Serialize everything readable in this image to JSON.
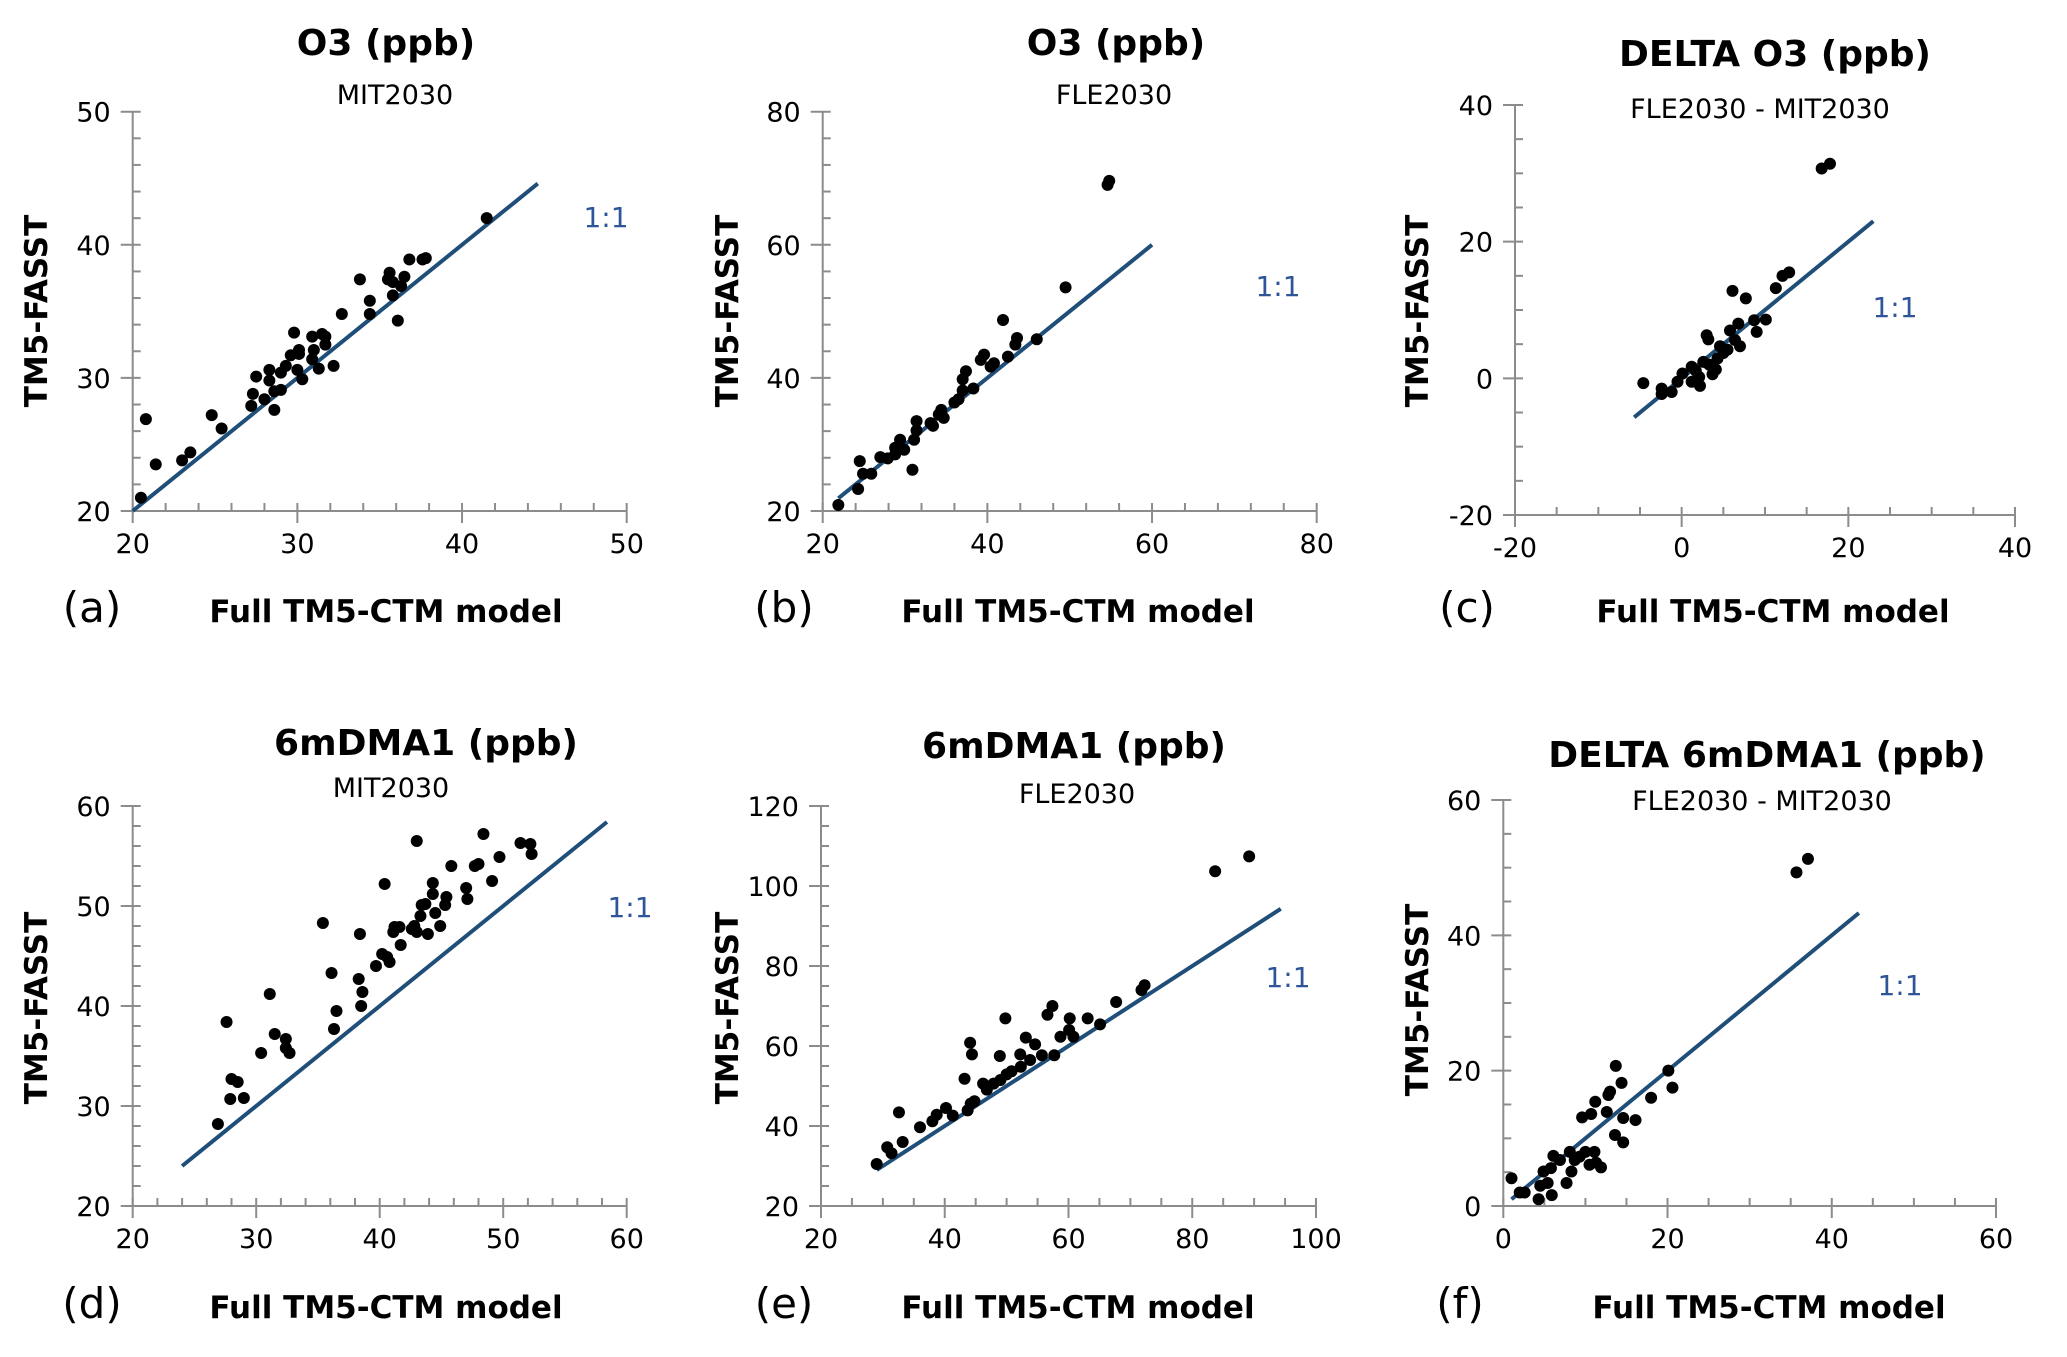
{
  "colors": {
    "points": "#000000",
    "reference_line": "#1f4e79",
    "reference_label": "#2e5597",
    "axis": "#8c8c8c"
  },
  "chart_data": [
    {
      "panel": "(a)",
      "type": "scatter",
      "title": "O3 (ppb)",
      "subtitle": "MIT2030",
      "xlabel": "Full TM5-CTM model",
      "ylabel": "TM5-FASST",
      "xlim": [
        20,
        50
      ],
      "ylim": [
        20,
        50
      ],
      "xticks": [
        20,
        30,
        40,
        50
      ],
      "yticks": [
        20,
        30,
        40,
        50
      ],
      "grid": false,
      "reference_line": {
        "label": "1:1",
        "x_range": [
          20,
          44.6
        ]
      },
      "x": [
        20.5,
        20.8,
        21.4,
        23.0,
        23.5,
        24.8,
        25.4,
        27.2,
        27.3,
        27.5,
        28.0,
        28.3,
        28.3,
        28.6,
        28.6,
        29.0,
        29.0,
        29.3,
        29.6,
        29.8,
        30.0,
        30.1,
        30.1,
        30.3,
        30.9,
        30.9,
        31.0,
        31.3,
        31.5,
        31.7,
        31.7,
        32.2,
        32.7,
        33.8,
        34.4,
        34.4,
        35.6,
        35.5,
        35.8,
        35.8,
        36.1,
        36.3,
        36.5,
        36.8,
        37.6,
        37.8,
        41.5
      ],
      "y": [
        21.0,
        26.9,
        23.5,
        23.8,
        24.4,
        27.2,
        26.2,
        27.9,
        28.8,
        30.1,
        28.4,
        30.6,
        29.8,
        27.6,
        29.0,
        29.1,
        30.4,
        30.9,
        31.7,
        33.4,
        30.6,
        32.1,
        31.8,
        29.9,
        33.1,
        31.4,
        32.1,
        30.7,
        33.3,
        33.1,
        32.5,
        30.9,
        34.8,
        37.4,
        35.8,
        34.8,
        37.9,
        37.4,
        37.2,
        36.2,
        34.3,
        36.9,
        37.6,
        38.9,
        38.9,
        39.0,
        42.0
      ]
    },
    {
      "panel": "(b)",
      "type": "scatter",
      "title": "O3 (ppb)",
      "subtitle": "FLE2030",
      "xlabel": "Full TM5-CTM model",
      "ylabel": "TM5-FASST",
      "xlim": [
        20,
        80
      ],
      "ylim": [
        20,
        80
      ],
      "xticks": [
        20,
        40,
        60,
        80
      ],
      "yticks": [
        20,
        40,
        60,
        80
      ],
      "grid": false,
      "reference_line": {
        "label": "1:1",
        "x_range": [
          21.9,
          60
        ]
      },
      "x": [
        21.9,
        24.3,
        24.5,
        24.9,
        25.9,
        27.0,
        27.9,
        28.8,
        28.8,
        29.4,
        29.9,
        30.9,
        31.1,
        31.4,
        31.4,
        33.1,
        33.4,
        34.1,
        34.4,
        34.7,
        36.0,
        36.5,
        37.0,
        37.0,
        37.4,
        38.3,
        39.2,
        39.6,
        40.4,
        40.8,
        41.9,
        42.5,
        43.4,
        43.6,
        46.0,
        49.5,
        54.6,
        54.8
      ],
      "y": [
        20.9,
        23.3,
        27.5,
        25.6,
        25.6,
        28.1,
        27.9,
        28.5,
        29.5,
        30.7,
        29.2,
        26.2,
        30.7,
        32.1,
        33.5,
        33.2,
        32.8,
        34.5,
        35.2,
        34.0,
        36.3,
        36.8,
        38.1,
        39.8,
        41.0,
        38.4,
        42.7,
        43.5,
        41.7,
        42.2,
        48.7,
        43.2,
        45.0,
        46.0,
        45.8,
        53.6,
        69.0,
        69.6
      ]
    },
    {
      "panel": "(c)",
      "type": "scatter",
      "title": "DELTA O3 (ppb)",
      "subtitle": "FLE2030 - MIT2030",
      "xlabel": "Full TM5-CTM model",
      "ylabel": "TM5-FASST",
      "xlim": [
        -20,
        40
      ],
      "ylim": [
        -20,
        40
      ],
      "xticks": [
        -20,
        0,
        20,
        40
      ],
      "yticks": [
        -20,
        0,
        20,
        40
      ],
      "grid": false,
      "reference_line": {
        "label": "1:1",
        "x_range": [
          -5.7,
          23
        ]
      },
      "x": [
        -4.6,
        -2.4,
        -2.4,
        -1.2,
        -0.5,
        0.1,
        1.2,
        1.2,
        1.7,
        2.1,
        2.2,
        2.6,
        3.0,
        3.2,
        3.3,
        3.7,
        4.1,
        4.3,
        4.6,
        5.0,
        5.5,
        5.8,
        6.1,
        6.4,
        6.8,
        7.0,
        7.7,
        8.7,
        9.0,
        10.1,
        11.3,
        12.1,
        12.9,
        16.8,
        17.8
      ],
      "y": [
        -0.7,
        -1.5,
        -2.3,
        -2.0,
        -0.5,
        0.7,
        1.7,
        -0.5,
        1.1,
        0.2,
        -1.1,
        2.4,
        6.3,
        5.7,
        2.0,
        0.6,
        1.3,
        2.9,
        4.7,
        3.7,
        4.2,
        7.0,
        12.8,
        5.6,
        8.0,
        4.7,
        11.7,
        8.5,
        6.8,
        8.6,
        13.2,
        15.0,
        15.5,
        30.7,
        31.4
      ]
    },
    {
      "panel": "(d)",
      "type": "scatter",
      "title": "6mDMA1 (ppb)",
      "subtitle": "MIT2030",
      "xlabel": "Full TM5-CTM model",
      "ylabel": "TM5-FASST",
      "xlim": [
        20,
        60
      ],
      "ylim": [
        20,
        60
      ],
      "xticks": [
        20,
        30,
        40,
        50,
        60
      ],
      "yticks": [
        20,
        30,
        40,
        50,
        60
      ],
      "grid": false,
      "reference_line": {
        "label": "1:1",
        "x_range": [
          24.0,
          58.4
        ]
      },
      "x": [
        26.9,
        27.6,
        27.9,
        28.0,
        28.5,
        29.0,
        30.4,
        31.1,
        31.5,
        32.4,
        32.4,
        32.7,
        35.4,
        36.1,
        36.3,
        36.5,
        38.3,
        38.4,
        38.6,
        38.5,
        39.7,
        40.2,
        40.4,
        40.6,
        40.8,
        41.1,
        41.2,
        41.6,
        41.7,
        42.6,
        42.8,
        43.0,
        43.0,
        43.3,
        43.4,
        43.7,
        43.9,
        44.3,
        44.3,
        44.5,
        44.9,
        45.3,
        45.4,
        45.8,
        47.0,
        47.1,
        47.7,
        48.0,
        48.4,
        49.1,
        49.7,
        51.4,
        52.2,
        52.3
      ],
      "y": [
        28.2,
        38.4,
        30.7,
        32.7,
        32.4,
        30.8,
        35.3,
        41.2,
        37.2,
        36.7,
        35.8,
        35.3,
        48.3,
        43.3,
        37.7,
        39.5,
        42.7,
        47.2,
        41.4,
        40.0,
        44.0,
        45.2,
        52.2,
        44.9,
        44.4,
        47.4,
        47.9,
        47.9,
        46.1,
        47.7,
        48.0,
        47.4,
        56.5,
        49.0,
        50.1,
        50.2,
        47.2,
        51.2,
        52.3,
        49.3,
        48.0,
        50.1,
        50.9,
        54.0,
        51.8,
        50.7,
        54.0,
        54.2,
        57.2,
        52.5,
        54.9,
        56.3,
        56.2,
        55.2
      ]
    },
    {
      "panel": "(e)",
      "type": "scatter",
      "title": "6mDMA1 (ppb)",
      "subtitle": "FLE2030",
      "xlabel": "Full TM5-CTM model",
      "ylabel": "TM5-FASST",
      "xlim": [
        20,
        100
      ],
      "ylim": [
        20,
        120
      ],
      "xticks": [
        20,
        40,
        60,
        80,
        100
      ],
      "yticks": [
        20,
        40,
        60,
        80,
        100,
        120
      ],
      "grid": false,
      "reference_line": {
        "label": "1:1",
        "x_range": [
          29.0,
          94.3
        ]
      },
      "x": [
        29.0,
        30.7,
        31.4,
        32.6,
        33.2,
        36.0,
        38.0,
        38.7,
        40.2,
        41.3,
        43.2,
        43.7,
        44.1,
        44.4,
        44.2,
        44.8,
        46.2,
        46.8,
        47.9,
        48.9,
        49.0,
        49.8,
        50.0,
        50.8,
        52.2,
        52.3,
        53.1,
        53.8,
        54.6,
        55.7,
        56.6,
        57.4,
        57.7,
        58.7,
        60.2,
        60.1,
        60.8,
        63.1,
        65.1,
        67.7,
        71.8,
        72.3,
        83.7,
        89.2
      ],
      "y": [
        30.5,
        34.7,
        33.2,
        43.4,
        36.0,
        39.7,
        41.2,
        42.8,
        44.5,
        42.6,
        51.8,
        43.9,
        60.8,
        57.9,
        45.6,
        46.2,
        50.6,
        49.1,
        50.6,
        57.5,
        51.5,
        66.9,
        52.9,
        53.7,
        57.9,
        54.8,
        62.1,
        56.5,
        60.4,
        57.7,
        67.8,
        70.0,
        57.7,
        62.3,
        66.9,
        64.0,
        62.3,
        66.9,
        65.4,
        71.0,
        74.0,
        75.2,
        103.7,
        107.4
      ]
    },
    {
      "panel": "(f)",
      "type": "scatter",
      "title": "DELTA 6mDMA1 (ppb)",
      "subtitle": "FLE2030 - MIT2030",
      "xlabel": "Full TM5-CTM model",
      "ylabel": "TM5-FASST",
      "xlim": [
        0,
        60
      ],
      "ylim": [
        0,
        60
      ],
      "xticks": [
        0,
        20,
        40,
        60
      ],
      "yticks": [
        0,
        20,
        40,
        60
      ],
      "grid": false,
      "reference_line": {
        "label": "1:1",
        "x_range": [
          1.0,
          43.3
        ]
      },
      "x": [
        1.0,
        2.0,
        2.6,
        4.3,
        4.5,
        4.9,
        5.4,
        5.9,
        6.1,
        5.8,
        6.9,
        7.7,
        8.1,
        8.3,
        8.7,
        9.3,
        9.6,
        10.0,
        10.5,
        10.7,
        11.1,
        11.2,
        11.3,
        11.9,
        12.6,
        12.8,
        13.0,
        13.6,
        13.7,
        14.4,
        14.6,
        14.6,
        16.1,
        18.0,
        20.1,
        20.6,
        35.7,
        37.1
      ],
      "y": [
        4.1,
        2.0,
        2.0,
        1.0,
        3.0,
        5.1,
        3.4,
        1.6,
        7.4,
        5.6,
        6.8,
        3.4,
        8.0,
        5.1,
        6.8,
        7.3,
        13.1,
        8.0,
        6.1,
        13.6,
        8.0,
        15.4,
        6.4,
        5.7,
        13.9,
        16.4,
        16.9,
        10.5,
        20.7,
        18.2,
        13.0,
        9.4,
        12.7,
        16.0,
        20.0,
        17.5,
        49.3,
        51.3
      ]
    }
  ]
}
